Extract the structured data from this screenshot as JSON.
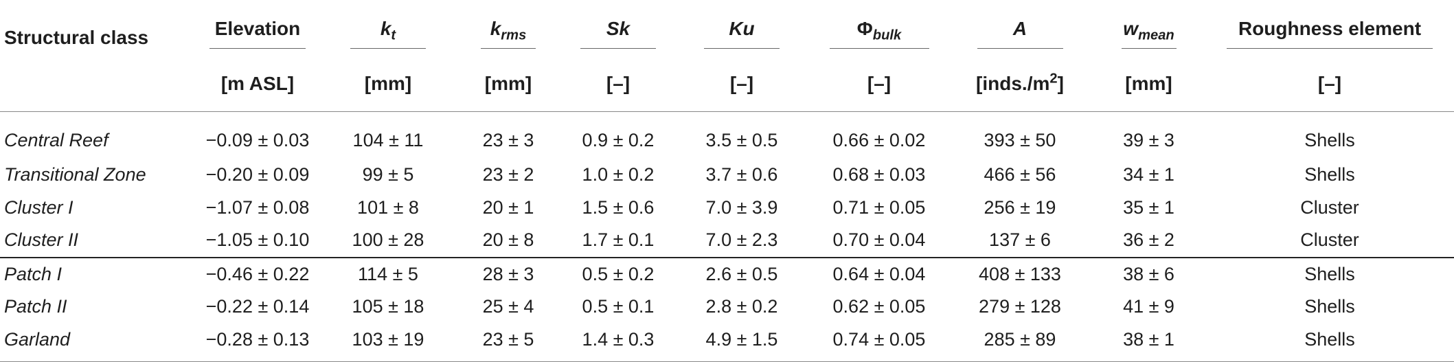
{
  "table": {
    "headers": [
      {
        "label": "Structural class",
        "unit": ""
      },
      {
        "label": "Elevation",
        "unit": "[m ASL]"
      },
      {
        "label_main": "k",
        "label_sub": "t",
        "unit": "[mm]"
      },
      {
        "label_main": "k",
        "label_sub": "rms",
        "unit": "[mm]"
      },
      {
        "label": "Sk",
        "unit": "[–]"
      },
      {
        "label": "Ku",
        "unit": "[–]"
      },
      {
        "label_main": "Φ",
        "label_sub": "bulk",
        "unit": "[–]"
      },
      {
        "label": "A",
        "unit_main": "[inds./m",
        "unit_sup": "2",
        "unit_end": "]"
      },
      {
        "label_main": "w",
        "label_sub": "mean",
        "unit": "[mm]"
      },
      {
        "label": "Roughness element",
        "unit": "[–]"
      }
    ],
    "rows": [
      [
        "Central Reef",
        "−0.09 ± 0.03",
        "104 ± 11",
        "23 ± 3",
        "0.9 ± 0.2",
        "3.5 ± 0.5",
        "0.66 ± 0.02",
        "393 ± 50",
        "39 ± 3",
        "Shells"
      ],
      [
        "Transitional Zone",
        "−0.20 ± 0.09",
        "99 ± 5",
        "23 ± 2",
        "1.0 ± 0.2",
        "3.7 ± 0.6",
        "0.68 ± 0.03",
        "466 ± 56",
        "34 ± 1",
        "Shells"
      ],
      [
        "Cluster I",
        "−1.07 ± 0.08",
        "101 ± 8",
        "20 ± 1",
        "1.5 ± 0.6",
        "7.0 ± 3.9",
        "0.71 ± 0.05",
        "256 ± 19",
        "35 ± 1",
        "Cluster"
      ],
      [
        "Cluster II",
        "−1.05 ± 0.10",
        "100 ± 28",
        "20 ± 8",
        "1.7 ± 0.1",
        "7.0 ± 2.3",
        "0.70 ± 0.04",
        "137 ± 6",
        "36 ± 2",
        "Cluster"
      ],
      [
        "Patch I",
        "−0.46 ± 0.22",
        "114 ± 5",
        "28 ± 3",
        "0.5 ± 0.2",
        "2.6 ± 0.5",
        "0.64 ± 0.04",
        "408 ± 133",
        "38 ± 6",
        "Shells"
      ],
      [
        "Patch II",
        "−0.22 ± 0.14",
        "105 ± 18",
        "25 ± 4",
        "0.5 ± 0.1",
        "2.8 ± 0.2",
        "0.62 ± 0.05",
        "279 ± 128",
        "41 ± 9",
        "Shells"
      ],
      [
        "Garland",
        "−0.28 ± 0.13",
        "103 ± 19",
        "23 ± 5",
        "1.4 ± 0.3",
        "4.9 ± 1.5",
        "0.74 ± 0.05",
        "285 ± 89",
        "38 ± 1",
        "Shells"
      ]
    ]
  }
}
